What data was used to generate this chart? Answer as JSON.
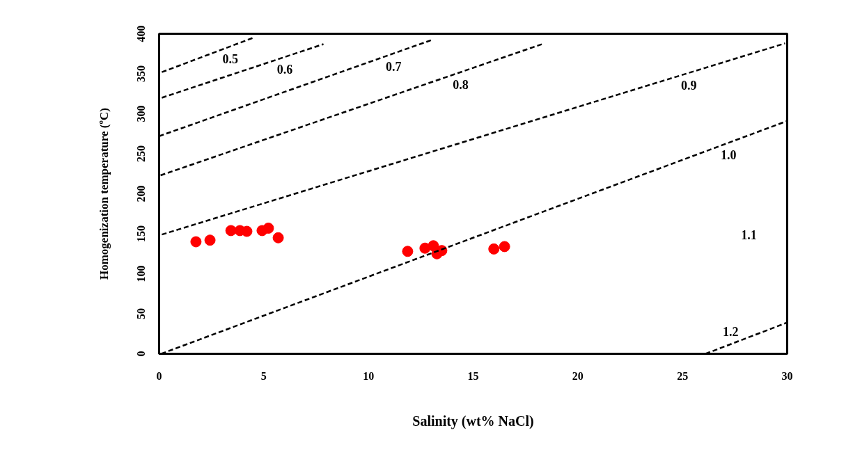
{
  "chart_data": {
    "type": "scatter",
    "xlabel": "Salinity (wt% NaCl)",
    "ylabel": "Homogenization temperature (ºC)",
    "xlim": [
      0,
      30
    ],
    "ylim": [
      0,
      400
    ],
    "xticks": [
      0,
      5,
      10,
      15,
      20,
      25,
      30
    ],
    "yticks": [
      0,
      50,
      100,
      150,
      200,
      250,
      300,
      350,
      400
    ],
    "grid": false,
    "marker": "circle",
    "series": [
      {
        "color": "#ff0000",
        "x": [
          1.76,
          2.43,
          3.43,
          3.86,
          4.19,
          4.92,
          5.22,
          5.69,
          11.87,
          12.7,
          13.1,
          13.27,
          13.5,
          15.99,
          16.5
        ],
        "values": [
          140,
          142,
          154,
          154,
          153,
          154,
          157,
          145,
          128,
          132,
          135,
          125,
          129,
          131,
          134
        ]
      },
      {
        "type": "line",
        "line_style": "dashed",
        "marker": "none",
        "color": "#000000",
        "x": [
          0.13,
          4.5
        ],
        "values": [
          352,
          395
        ]
      },
      {
        "type": "line",
        "line_style": "dashed",
        "marker": "none",
        "color": "#000000",
        "x": [
          0.13,
          7.85
        ],
        "values": [
          320,
          387
        ]
      },
      {
        "type": "line",
        "line_style": "dashed",
        "marker": "none",
        "color": "#000000",
        "x": [
          0,
          13.0
        ],
        "values": [
          272,
          392
        ]
      },
      {
        "type": "line",
        "line_style": "dashed",
        "marker": "none",
        "color": "#000000",
        "x": [
          0.07,
          18.4
        ],
        "values": [
          223,
          388
        ]
      },
      {
        "type": "line",
        "line_style": "dashed",
        "marker": "none",
        "color": "#000000",
        "x": [
          0.13,
          29.9
        ],
        "values": [
          149,
          388
        ]
      },
      {
        "type": "line",
        "line_style": "dashed",
        "marker": "none",
        "color": "#000000",
        "x": [
          0.1,
          30
        ],
        "values": [
          0,
          291
        ]
      },
      {
        "type": "line",
        "line_style": "dashed",
        "marker": "none",
        "color": "#000000",
        "x": [
          26.1,
          30
        ],
        "values": [
          0,
          39
        ]
      }
    ],
    "annotations": [
      {
        "text": "0.5",
        "x": 3.4,
        "y": 384
      },
      {
        "text": "0.6",
        "x": 6.0,
        "y": 371
      },
      {
        "text": "0.7",
        "x": 11.2,
        "y": 375
      },
      {
        "text": "0.8",
        "x": 14.4,
        "y": 352
      },
      {
        "text": "0.9",
        "x": 25.3,
        "y": 351
      },
      {
        "text": "1.0",
        "x": 27.2,
        "y": 264
      },
      "1.1",
      {
        "text": "1.2",
        "x": 27.3,
        "y": 12
      }
    ]
  }
}
